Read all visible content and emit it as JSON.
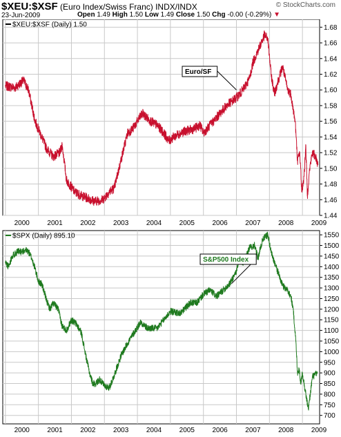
{
  "header": {
    "symbol": "$XEU:$XSF",
    "description": "(Euro Index/Swiss Franc) INDX/INDX",
    "date": "23-Jun-2009",
    "brand": "© StockCharts.com",
    "open_label": "Open",
    "open_value": "1.49",
    "high_label": "High",
    "high_value": "1.50",
    "low_label": "Low",
    "low_value": "1.49",
    "close_label": "Close",
    "close_value": "1.50",
    "chg_label": "Chg",
    "chg_value": "-0.00 (-0.29%)",
    "chg_icon": "down-triangle-icon"
  },
  "colors": {
    "eurchf": "#c8102e",
    "spx": "#1f7a1f",
    "grid": "#c8c8c8",
    "frame": "#000000"
  },
  "chart_data": [
    {
      "type": "line",
      "legend": "$XEU:$XSF (Daily) 1.50",
      "annotation": "Euro/SF",
      "ylim": [
        1.44,
        1.69
      ],
      "yticks": [
        1.44,
        1.46,
        1.48,
        1.5,
        1.52,
        1.54,
        1.56,
        1.58,
        1.6,
        1.62,
        1.64,
        1.66,
        1.68
      ],
      "ytick_labels": [
        "1.44",
        "1.46",
        "1.48",
        "1.50",
        "1.52",
        "1.54",
        "1.56",
        "1.58",
        "1.60",
        "1.62",
        "1.64",
        "1.66",
        "1.68"
      ],
      "xlim": [
        1999.92,
        2009.52
      ],
      "xticks": [
        2000,
        2001,
        2002,
        2003,
        2004,
        2005,
        2006,
        2007,
        2008,
        2009
      ],
      "xtick_labels": [
        "2000",
        "2001",
        "2002",
        "2003",
        "2004",
        "2005",
        "2006",
        "2007",
        "2008",
        "2009"
      ],
      "grid": true,
      "x": [
        2000.0,
        2000.3,
        2000.55,
        2000.7,
        2000.9,
        2001.05,
        2001.25,
        2001.45,
        2001.65,
        2001.72,
        2001.78,
        2001.85,
        2002.1,
        2002.3,
        2002.5,
        2002.7,
        2002.95,
        2003.15,
        2003.3,
        2003.5,
        2003.7,
        2003.85,
        2004.0,
        2004.15,
        2004.4,
        2004.6,
        2004.8,
        2004.95,
        2005.1,
        2005.3,
        2005.5,
        2005.7,
        2005.9,
        2006.0,
        2006.1,
        2006.3,
        2006.5,
        2006.7,
        2006.85,
        2007.0,
        2007.2,
        2007.4,
        2007.5,
        2007.6,
        2007.75,
        2007.85,
        2007.95,
        2008.05,
        2008.15,
        2008.25,
        2008.4,
        2008.55,
        2008.65,
        2008.72,
        2008.78,
        2008.85,
        2008.92,
        2008.98,
        2009.05,
        2009.1,
        2009.15,
        2009.22,
        2009.3,
        2009.4,
        2009.47
      ],
      "y": [
        1.605,
        1.603,
        1.612,
        1.6,
        1.56,
        1.545,
        1.525,
        1.515,
        1.52,
        1.53,
        1.51,
        1.485,
        1.47,
        1.465,
        1.462,
        1.458,
        1.46,
        1.47,
        1.475,
        1.51,
        1.545,
        1.55,
        1.56,
        1.57,
        1.56,
        1.555,
        1.545,
        1.535,
        1.54,
        1.545,
        1.548,
        1.55,
        1.555,
        1.545,
        1.55,
        1.56,
        1.57,
        1.58,
        1.585,
        1.59,
        1.6,
        1.615,
        1.635,
        1.645,
        1.66,
        1.67,
        1.665,
        1.62,
        1.595,
        1.61,
        1.63,
        1.6,
        1.595,
        1.575,
        1.56,
        1.51,
        1.52,
        1.47,
        1.49,
        1.53,
        1.465,
        1.5,
        1.52,
        1.515,
        1.505
      ]
    },
    {
      "type": "line",
      "legend": "$SPX (Daily) 895.10",
      "annotation": "S&P500 Index",
      "ylim": [
        660,
        1570
      ],
      "yticks": [
        700,
        750,
        800,
        850,
        900,
        950,
        1000,
        1050,
        1100,
        1150,
        1200,
        1250,
        1300,
        1350,
        1400,
        1450,
        1500,
        1550
      ],
      "ytick_labels": [
        "700",
        "750",
        "800",
        "850",
        "900",
        "950",
        "1000",
        "1050",
        "1100",
        "1150",
        "1200",
        "1250",
        "1300",
        "1350",
        "1400",
        "1450",
        "1500",
        "1550"
      ],
      "xlim": [
        1999.92,
        2009.52
      ],
      "xticks": [
        2000,
        2001,
        2002,
        2003,
        2004,
        2005,
        2006,
        2007,
        2008,
        2009
      ],
      "xtick_labels": [
        "2000",
        "2001",
        "2002",
        "2003",
        "2004",
        "2005",
        "2006",
        "2007",
        "2008",
        "2009"
      ],
      "grid": true,
      "x": [
        2000.0,
        2000.1,
        2000.2,
        2000.35,
        2000.5,
        2000.6,
        2000.7,
        2000.8,
        2000.9,
        2001.0,
        2001.1,
        2001.25,
        2001.35,
        2001.45,
        2001.6,
        2001.72,
        2001.85,
        2002.0,
        2002.15,
        2002.3,
        2002.45,
        2002.55,
        2002.65,
        2002.75,
        2002.85,
        2003.0,
        2003.15,
        2003.3,
        2003.5,
        2003.7,
        2003.9,
        2004.1,
        2004.3,
        2004.6,
        2004.8,
        2005.0,
        2005.3,
        2005.6,
        2005.8,
        2006.0,
        2006.2,
        2006.4,
        2006.6,
        2006.8,
        2007.0,
        2007.1,
        2007.2,
        2007.4,
        2007.55,
        2007.65,
        2007.8,
        2007.95,
        2008.05,
        2008.2,
        2008.4,
        2008.55,
        2008.65,
        2008.72,
        2008.8,
        2008.85,
        2008.9,
        2008.95,
        2009.0,
        2009.08,
        2009.18,
        2009.3,
        2009.45
      ],
      "y": [
        1420,
        1400,
        1450,
        1470,
        1470,
        1480,
        1470,
        1440,
        1390,
        1330,
        1320,
        1240,
        1200,
        1230,
        1200,
        1120,
        1100,
        1150,
        1130,
        1090,
        970,
        900,
        850,
        850,
        870,
        840,
        830,
        890,
        980,
        1040,
        1090,
        1140,
        1110,
        1110,
        1150,
        1190,
        1180,
        1230,
        1230,
        1270,
        1290,
        1260,
        1290,
        1320,
        1380,
        1430,
        1420,
        1490,
        1500,
        1440,
        1530,
        1550,
        1470,
        1400,
        1310,
        1290,
        1260,
        1200,
        1050,
        900,
        920,
        850,
        900,
        820,
        730,
        880,
        900
      ]
    }
  ]
}
